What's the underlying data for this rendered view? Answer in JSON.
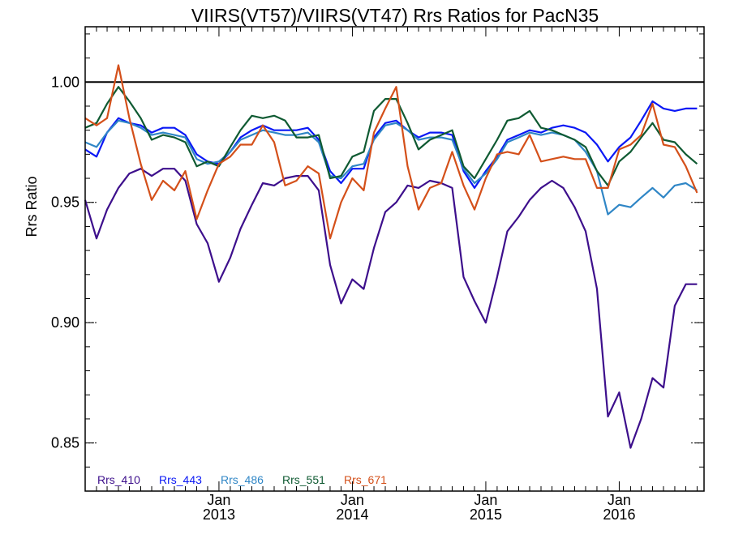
{
  "chart_data": {
    "type": "line",
    "title": "VIIRS(VT57)/VIIRS(VT47)  Rrs Ratios for PacN35",
    "ylabel": "Rrs Ratio",
    "xlabel": "",
    "ylim": [
      0.83,
      1.023
    ],
    "xlim": [
      "2012-01-01",
      "2016-08-20"
    ],
    "yticks": [
      {
        "value": 0.85,
        "label": "0.85"
      },
      {
        "value": 0.9,
        "label": "0.90"
      },
      {
        "value": 0.95,
        "label": "0.95"
      },
      {
        "value": 1.0,
        "label": "1.00"
      }
    ],
    "xticks": [
      {
        "date": "2013-01-01",
        "month": "Jan",
        "year": "2013"
      },
      {
        "date": "2014-01-01",
        "month": "Jan",
        "year": "2014"
      },
      {
        "date": "2015-01-01",
        "month": "Jan",
        "year": "2015"
      },
      {
        "date": "2016-01-01",
        "month": "Jan",
        "year": "2016"
      }
    ],
    "reference_line": 1.0,
    "grid": false,
    "legend_position": "bottom-left",
    "x": [
      "2012-01-01",
      "2012-02-01",
      "2012-03-01",
      "2012-04-01",
      "2012-05-01",
      "2012-06-01",
      "2012-07-01",
      "2012-08-01",
      "2012-09-01",
      "2012-10-01",
      "2012-11-01",
      "2012-12-01",
      "2013-01-01",
      "2013-02-01",
      "2013-03-01",
      "2013-04-01",
      "2013-05-01",
      "2013-06-01",
      "2013-07-01",
      "2013-08-01",
      "2013-09-01",
      "2013-10-01",
      "2013-11-01",
      "2013-12-01",
      "2014-01-01",
      "2014-02-01",
      "2014-03-01",
      "2014-04-01",
      "2014-05-01",
      "2014-06-01",
      "2014-07-01",
      "2014-08-01",
      "2014-09-01",
      "2014-10-01",
      "2014-11-01",
      "2014-12-01",
      "2015-01-01",
      "2015-02-01",
      "2015-03-01",
      "2015-04-01",
      "2015-05-01",
      "2015-06-01",
      "2015-07-01",
      "2015-08-01",
      "2015-09-01",
      "2015-10-01",
      "2015-11-01",
      "2015-12-01",
      "2016-01-01",
      "2016-02-01",
      "2016-03-01",
      "2016-04-01",
      "2016-05-01",
      "2016-06-01",
      "2016-07-01",
      "2016-08-01"
    ],
    "series": [
      {
        "name": "Rrs_410",
        "color": "#3d0f8c",
        "values": [
          0.951,
          0.935,
          0.947,
          0.956,
          0.962,
          0.964,
          0.961,
          0.964,
          0.964,
          0.959,
          0.941,
          0.933,
          0.917,
          0.927,
          0.939,
          0.949,
          0.958,
          0.957,
          0.96,
          0.961,
          0.961,
          0.955,
          0.924,
          0.908,
          0.918,
          0.914,
          0.931,
          0.946,
          0.95,
          0.957,
          0.956,
          0.959,
          0.958,
          0.956,
          0.919,
          0.909,
          0.9,
          0.919,
          0.938,
          0.944,
          0.951,
          0.956,
          0.959,
          0.956,
          0.948,
          0.938,
          0.914,
          0.861,
          0.871,
          0.848,
          0.86,
          0.877,
          0.873,
          0.907,
          0.916,
          0.916
        ]
      },
      {
        "name": "Rrs_443",
        "color": "#0a18f5",
        "values": [
          0.972,
          0.969,
          0.979,
          0.985,
          0.983,
          0.982,
          0.979,
          0.981,
          0.981,
          0.978,
          0.97,
          0.967,
          0.966,
          0.971,
          0.977,
          0.98,
          0.982,
          0.98,
          0.98,
          0.98,
          0.981,
          0.976,
          0.963,
          0.958,
          0.964,
          0.964,
          0.977,
          0.983,
          0.984,
          0.98,
          0.977,
          0.979,
          0.979,
          0.978,
          0.963,
          0.956,
          0.963,
          0.969,
          0.976,
          0.978,
          0.98,
          0.979,
          0.981,
          0.982,
          0.981,
          0.979,
          0.974,
          0.967,
          0.973,
          0.977,
          0.984,
          0.992,
          0.989,
          0.988,
          0.989,
          0.989
        ]
      },
      {
        "name": "Rrs_486",
        "color": "#2f86c6",
        "values": [
          0.975,
          0.973,
          0.979,
          0.984,
          0.983,
          0.981,
          0.978,
          0.979,
          0.978,
          0.977,
          0.968,
          0.966,
          0.967,
          0.971,
          0.976,
          0.978,
          0.98,
          0.979,
          0.978,
          0.978,
          0.979,
          0.975,
          0.961,
          0.96,
          0.965,
          0.966,
          0.976,
          0.982,
          0.983,
          0.98,
          0.976,
          0.977,
          0.977,
          0.976,
          0.964,
          0.958,
          0.962,
          0.968,
          0.975,
          0.977,
          0.979,
          0.978,
          0.979,
          0.978,
          0.976,
          0.971,
          0.963,
          0.945,
          0.949,
          0.948,
          0.952,
          0.956,
          0.952,
          0.957,
          0.958,
          0.955
        ]
      },
      {
        "name": "Rrs_551",
        "color": "#0f5a32",
        "values": [
          0.981,
          0.983,
          0.991,
          0.998,
          0.992,
          0.985,
          0.976,
          0.978,
          0.977,
          0.975,
          0.965,
          0.967,
          0.965,
          0.973,
          0.98,
          0.986,
          0.985,
          0.986,
          0.984,
          0.977,
          0.977,
          0.978,
          0.96,
          0.961,
          0.969,
          0.971,
          0.988,
          0.993,
          0.993,
          0.983,
          0.972,
          0.976,
          0.978,
          0.98,
          0.965,
          0.96,
          0.968,
          0.976,
          0.984,
          0.985,
          0.988,
          0.981,
          0.98,
          0.978,
          0.976,
          0.973,
          0.963,
          0.957,
          0.967,
          0.971,
          0.977,
          0.983,
          0.976,
          0.975,
          0.97,
          0.966
        ]
      },
      {
        "name": "Rrs_671",
        "color": "#d4501a",
        "values": [
          0.985,
          0.982,
          0.985,
          1.007,
          0.985,
          0.966,
          0.951,
          0.959,
          0.955,
          0.963,
          0.943,
          0.955,
          0.966,
          0.969,
          0.974,
          0.974,
          0.982,
          0.975,
          0.957,
          0.959,
          0.965,
          0.962,
          0.935,
          0.95,
          0.96,
          0.955,
          0.979,
          0.989,
          0.998,
          0.965,
          0.947,
          0.956,
          0.958,
          0.971,
          0.957,
          0.947,
          0.96,
          0.97,
          0.971,
          0.97,
          0.978,
          0.967,
          0.968,
          0.969,
          0.968,
          0.968,
          0.956,
          0.956,
          0.972,
          0.974,
          0.978,
          0.991,
          0.974,
          0.973,
          0.965,
          0.954
        ]
      }
    ]
  }
}
